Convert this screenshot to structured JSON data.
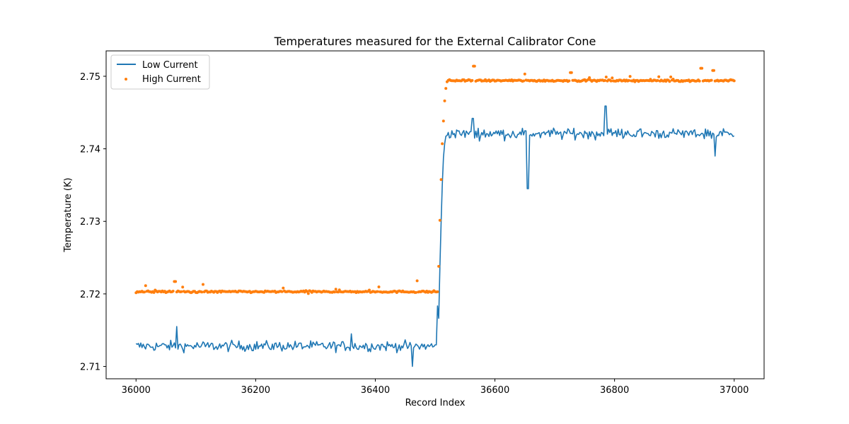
{
  "chart_data": {
    "type": "line",
    "title": "Temperatures measured for the External Calibrator Cone",
    "xlabel": "Record Index",
    "ylabel": "Temperature (K)",
    "xlim": [
      35950,
      37050
    ],
    "ylim": [
      2.7083,
      2.7535
    ],
    "xticks": [
      36000,
      36200,
      36400,
      36600,
      36800,
      37000
    ],
    "xtick_labels": [
      "36000",
      "36200",
      "36400",
      "36600",
      "36800",
      "37000"
    ],
    "yticks": [
      2.71,
      2.72,
      2.73,
      2.74,
      2.75
    ],
    "ytick_labels": [
      "2.71",
      "2.72",
      "2.73",
      "2.74",
      "2.75"
    ],
    "grid": false,
    "legend_position": "top-left",
    "step_index": 36505,
    "series": [
      {
        "name": "Low Current",
        "kind": "line",
        "color": "#1f77b4",
        "before_level": 2.7128,
        "after_level": 2.7421,
        "noise": 0.0007,
        "spikes": [
          {
            "x": 36068,
            "y": 2.7155
          },
          {
            "x": 36360,
            "y": 2.7145
          },
          {
            "x": 36462,
            "y": 2.71
          },
          {
            "x": 36563,
            "y": 2.7442
          },
          {
            "x": 36655,
            "y": 2.7345
          },
          {
            "x": 36785,
            "y": 2.7459
          },
          {
            "x": 36968,
            "y": 2.739
          }
        ]
      },
      {
        "name": "High Current",
        "kind": "scatter",
        "color": "#ff7f0e",
        "before_level": 2.7203,
        "after_level": 2.7494,
        "noise": 0.00012,
        "spikes": [
          {
            "x": 36065,
            "y": 2.7217
          },
          {
            "x": 36112,
            "y": 2.7213
          },
          {
            "x": 36470,
            "y": 2.7218
          },
          {
            "x": 36565,
            "y": 2.7514
          },
          {
            "x": 36650,
            "y": 2.7503
          },
          {
            "x": 36727,
            "y": 2.7505
          },
          {
            "x": 36945,
            "y": 2.7511
          },
          {
            "x": 36965,
            "y": 2.7508
          }
        ]
      }
    ]
  }
}
